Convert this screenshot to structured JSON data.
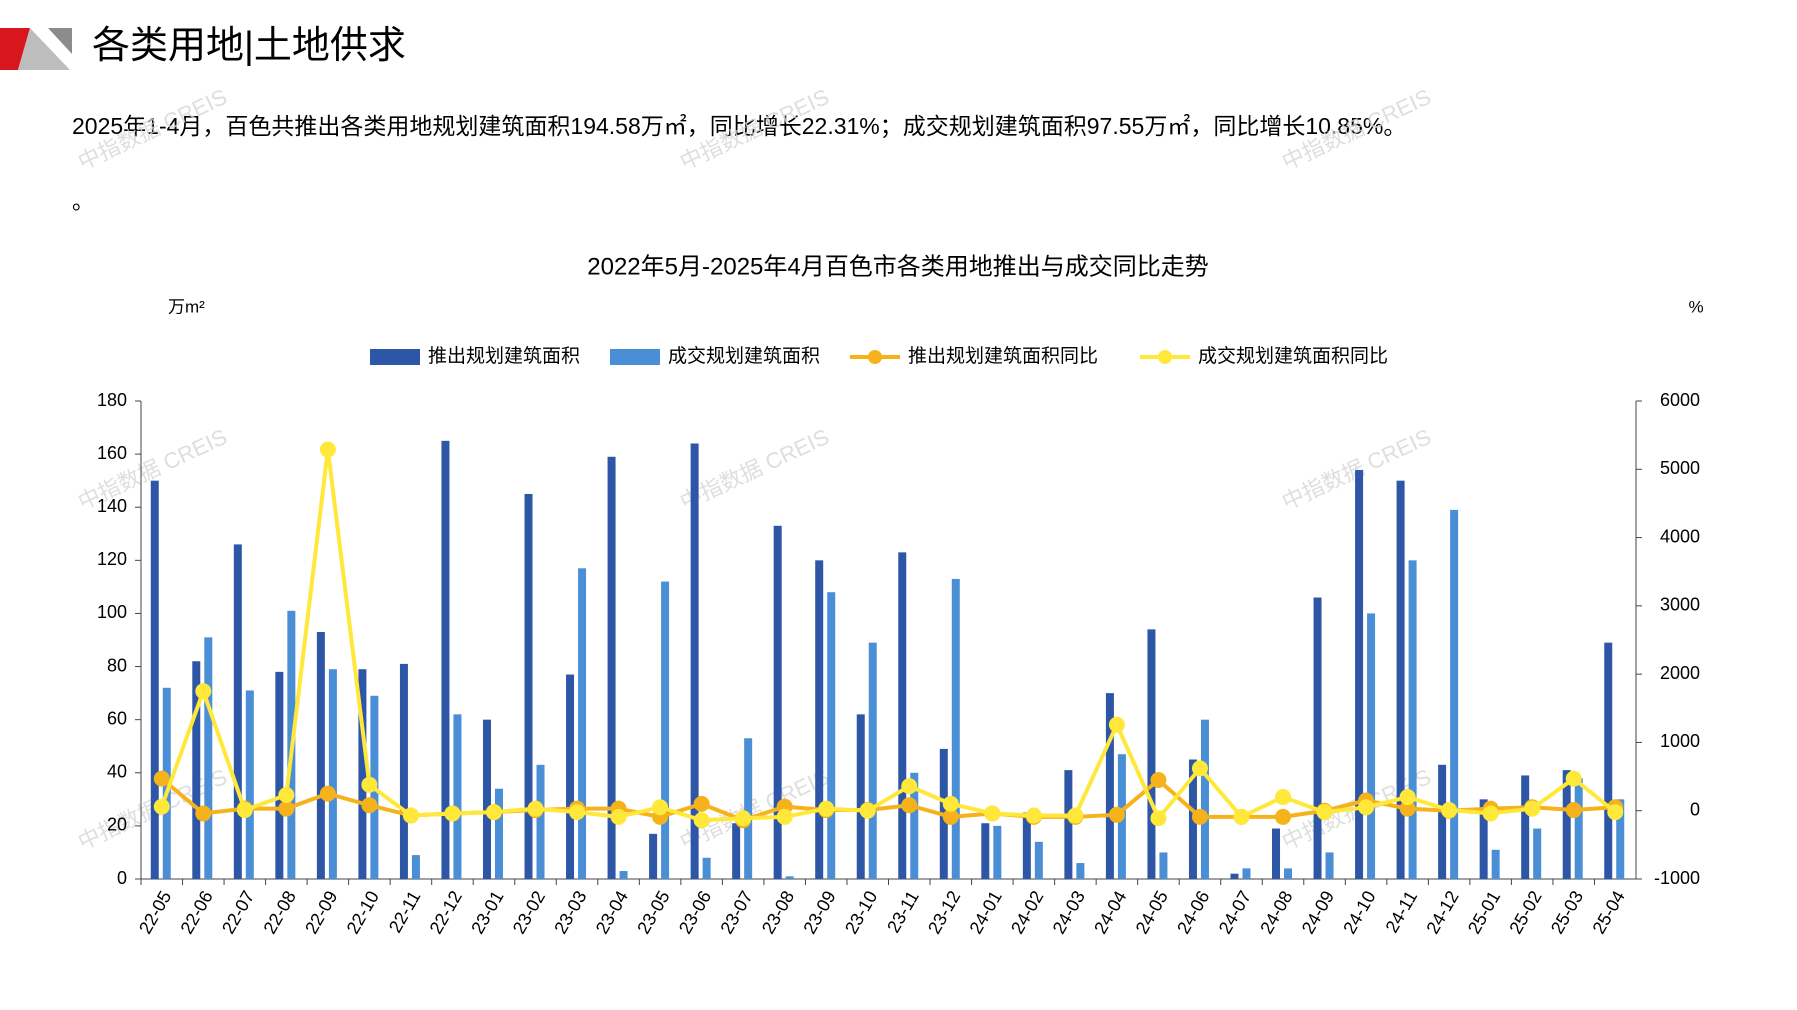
{
  "header": {
    "title": "各类用地|土地供求"
  },
  "paragraph": "2025年1-4月，百色共推出各类用地规划建筑面积194.58万㎡，同比增长22.31%；成交规划建筑面积97.55万㎡，同比增长10.85%。",
  "paragraph_end": "。",
  "watermark": "中指数据 CREIS",
  "chart_data": {
    "type": "bar_line",
    "title": "2022年5月-2025年4月百色市各类用地推出与成交同比走势",
    "y_unit": "万m²",
    "y2_unit": "%",
    "categories": [
      "22-05",
      "22-06",
      "22-07",
      "22-08",
      "22-09",
      "22-10",
      "22-11",
      "22-12",
      "23-01",
      "23-02",
      "23-03",
      "23-04",
      "23-05",
      "23-06",
      "23-07",
      "23-08",
      "23-09",
      "23-10",
      "23-11",
      "23-12",
      "24-01",
      "24-02",
      "24-03",
      "24-04",
      "24-05",
      "24-06",
      "24-07",
      "24-08",
      "24-09",
      "24-10",
      "24-11",
      "24-12",
      "25-01",
      "25-02",
      "25-03",
      "25-04"
    ],
    "series": [
      {
        "name": "推出规划建筑面积",
        "kind": "bar",
        "color": "#2e56a6",
        "values": [
          150,
          82,
          126,
          78,
          93,
          79,
          81,
          165,
          60,
          145,
          77,
          159,
          17,
          164,
          21,
          133,
          120,
          62,
          123,
          49,
          21,
          25,
          41,
          70,
          94,
          45,
          2,
          19,
          106,
          154,
          150,
          43,
          30,
          39,
          41,
          89
        ]
      },
      {
        "name": "成交规划建筑面积",
        "kind": "bar",
        "color": "#4a8fd6",
        "values": [
          72,
          91,
          71,
          101,
          79,
          69,
          9,
          62,
          34,
          43,
          117,
          3,
          112,
          8,
          53,
          1,
          108,
          89,
          40,
          113,
          20,
          14,
          6,
          47,
          10,
          60,
          4,
          4,
          10,
          100,
          120,
          139,
          11,
          19,
          38,
          30
        ]
      },
      {
        "name": "推出规划建筑面积同比",
        "kind": "line",
        "axis": "y2",
        "color": "#f5b21b",
        "values": [
          470,
          -40,
          30,
          30,
          250,
          80,
          -70,
          -40,
          -20,
          10,
          30,
          30,
          -90,
          100,
          -140,
          60,
          10,
          10,
          80,
          -90,
          -40,
          -90,
          -90,
          -60,
          450,
          -90,
          -90,
          -90,
          0,
          150,
          30,
          0,
          30,
          50,
          10,
          50
        ]
      },
      {
        "name": "成交规划建筑面积同比",
        "kind": "line",
        "axis": "y2",
        "color": "#ffe83a",
        "values": [
          60,
          1750,
          10,
          230,
          5290,
          380,
          -70,
          -40,
          -20,
          30,
          -20,
          -90,
          50,
          -140,
          -110,
          -90,
          30,
          0,
          360,
          100,
          -40,
          -70,
          -70,
          1260,
          -110,
          620,
          -90,
          200,
          -20,
          50,
          200,
          10,
          -40,
          30,
          470,
          -20
        ]
      }
    ],
    "ylim": [
      0,
      180
    ],
    "yticks": [
      0,
      20,
      40,
      60,
      80,
      100,
      120,
      140,
      160,
      180
    ],
    "y2lim": [
      -1000,
      6000
    ],
    "y2ticks": [
      -1000,
      0,
      1000,
      2000,
      3000,
      4000,
      5000,
      6000
    ],
    "legend": "top"
  }
}
